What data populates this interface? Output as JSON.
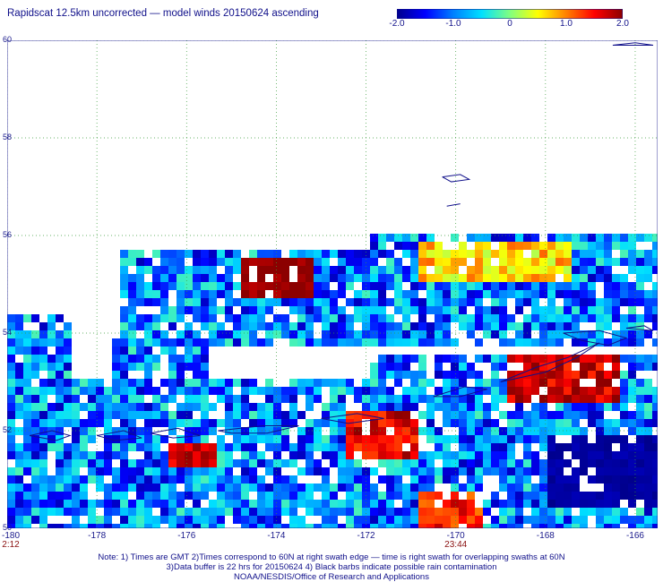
{
  "title": "Rapidscat 12.5km uncorrected — model winds 20150624 ascending",
  "colorbar": {
    "ticks": [
      "-2.0",
      "-1.0",
      "0",
      "1.0",
      "2.0"
    ],
    "range": [
      -2.0,
      2.0
    ],
    "colors": [
      "#00008c",
      "#0000ff",
      "#0080ff",
      "#00e0ff",
      "#80ff80",
      "#ffff00",
      "#ff8000",
      "#ff0000",
      "#8c0000"
    ]
  },
  "map": {
    "lat_labels": [
      "60",
      "58",
      "56",
      "54",
      "52",
      "50"
    ],
    "lon_labels": [
      "-180",
      "-178",
      "-176",
      "-174",
      "-172",
      "-170",
      "-168",
      "-166"
    ],
    "lon_range": [
      -180,
      -165.5
    ],
    "lat_range": [
      50,
      60
    ],
    "times": [
      {
        "label": "2:12",
        "lon": -180
      },
      {
        "label": "23:44",
        "lon": -170
      }
    ],
    "gridlines": "dotted-green",
    "coastline_color": "#10108a"
  },
  "notes": [
    "Note: 1) Times are GMT 2)Times correspond to 60N at right swath edge — time is right swath for overlapping swaths at 60N",
    "3)Data buffer is 22 hrs for 20150624 4) Black barbs indicate possible rain contamination",
    "NOAA/NESDIS/Office of Research and Applications"
  ]
}
